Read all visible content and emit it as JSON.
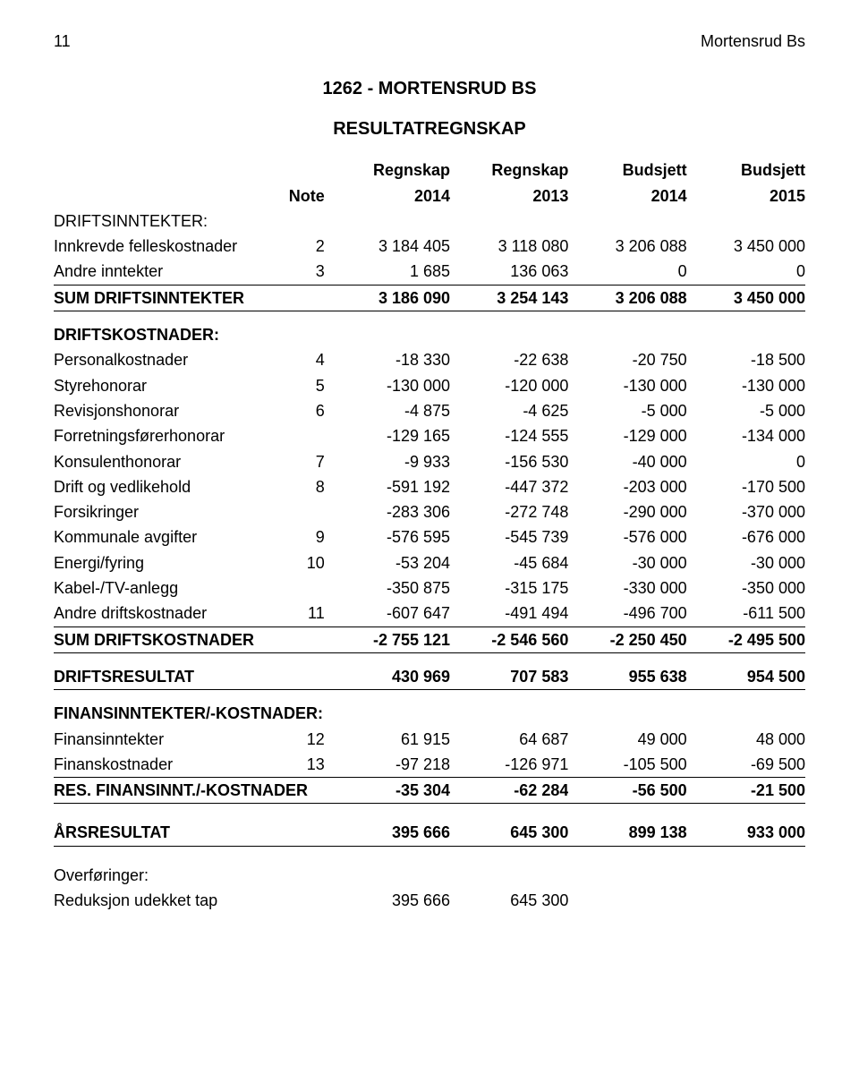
{
  "header": {
    "page_number": "11",
    "doc_title": "Mortensrud Bs"
  },
  "titles": {
    "t1": "1262  -  MORTENSRUD BS",
    "t2": "RESULTATREGNSKAP"
  },
  "columns": {
    "label": "",
    "note": "Note",
    "c1_top": "Regnskap",
    "c1_bot": "2014",
    "c2_top": "Regnskap",
    "c2_bot": "2013",
    "c3_top": "Budsjett",
    "c3_bot": "2014",
    "c4_top": "Budsjett",
    "c4_bot": "2015"
  },
  "sections": {
    "driftsinntekter_head": "DRIFTSINNTEKTER:",
    "driftskostnader_head": "DRIFTSKOSTNADER:",
    "finans_head": "FINANSINNTEKTER/-KOSTNADER:",
    "overforinger_head": "Overføringer:"
  },
  "rows": {
    "innkrevde": {
      "label": "Innkrevde felleskostnader",
      "note": "2",
      "v": [
        "3 184 405",
        "3 118 080",
        "3 206 088",
        "3 450 000"
      ]
    },
    "andre_innt": {
      "label": "Andre inntekter",
      "note": "3",
      "v": [
        "1 685",
        "136 063",
        "0",
        "0"
      ]
    },
    "sum_driftsinnt": {
      "label": "SUM DRIFTSINNTEKTER",
      "note": "",
      "v": [
        "3 186 090",
        "3 254 143",
        "3 206 088",
        "3 450 000"
      ]
    },
    "personal": {
      "label": "Personalkostnader",
      "note": "4",
      "v": [
        "-18 330",
        "-22 638",
        "-20 750",
        "-18 500"
      ]
    },
    "styre": {
      "label": "Styrehonorar",
      "note": "5",
      "v": [
        "-130 000",
        "-120 000",
        "-130 000",
        "-130 000"
      ]
    },
    "revisjon": {
      "label": "Revisjonshonorar",
      "note": "6",
      "v": [
        "-4 875",
        "-4 625",
        "-5 000",
        "-5 000"
      ]
    },
    "forretning": {
      "label": "Forretningsførerhonorar",
      "note": "",
      "v": [
        "-129 165",
        "-124 555",
        "-129 000",
        "-134 000"
      ]
    },
    "konsulent": {
      "label": "Konsulenthonorar",
      "note": "7",
      "v": [
        "-9 933",
        "-156 530",
        "-40 000",
        "0"
      ]
    },
    "drift": {
      "label": "Drift og vedlikehold",
      "note": "8",
      "v": [
        "-591 192",
        "-447 372",
        "-203 000",
        "-170 500"
      ]
    },
    "forsikring": {
      "label": "Forsikringer",
      "note": "",
      "v": [
        "-283 306",
        "-272 748",
        "-290 000",
        "-370 000"
      ]
    },
    "kommunale": {
      "label": "Kommunale avgifter",
      "note": "9",
      "v": [
        "-576 595",
        "-545 739",
        "-576 000",
        "-676 000"
      ]
    },
    "energi": {
      "label": "Energi/fyring",
      "note": "10",
      "v": [
        "-53 204",
        "-45 684",
        "-30 000",
        "-30 000"
      ]
    },
    "kabel": {
      "label": "Kabel-/TV-anlegg",
      "note": "",
      "v": [
        "-350 875",
        "-315 175",
        "-330 000",
        "-350 000"
      ]
    },
    "andre_drift": {
      "label": "Andre driftskostnader",
      "note": "11",
      "v": [
        "-607 647",
        "-491 494",
        "-496 700",
        "-611 500"
      ]
    },
    "sum_driftskost": {
      "label": "SUM DRIFTSKOSTNADER",
      "note": "",
      "v": [
        "-2 755 121",
        "-2 546 560",
        "-2 250 450",
        "-2 495 500"
      ]
    },
    "driftsresultat": {
      "label": "DRIFTSRESULTAT",
      "note": "",
      "v": [
        "430 969",
        "707 583",
        "955 638",
        "954 500"
      ]
    },
    "finansinnt": {
      "label": "Finansinntekter",
      "note": "12",
      "v": [
        "61 915",
        "64 687",
        "49 000",
        "48 000"
      ]
    },
    "finanskost": {
      "label": "Finanskostnader",
      "note": "13",
      "v": [
        "-97 218",
        "-126 971",
        "-105 500",
        "-69 500"
      ]
    },
    "res_finans": {
      "label": "RES. FINANSINNT./-KOSTNADER",
      "note": "",
      "v": [
        "-35 304",
        "-62 284",
        "-56 500",
        "-21 500"
      ]
    },
    "arsresultat": {
      "label": "ÅRSRESULTAT",
      "note": "",
      "v": [
        "395 666",
        "645 300",
        "899 138",
        "933 000"
      ]
    },
    "reduksjon": {
      "label": "Reduksjon udekket tap",
      "note": "",
      "v": [
        "395 666",
        "645 300",
        "",
        ""
      ]
    }
  }
}
